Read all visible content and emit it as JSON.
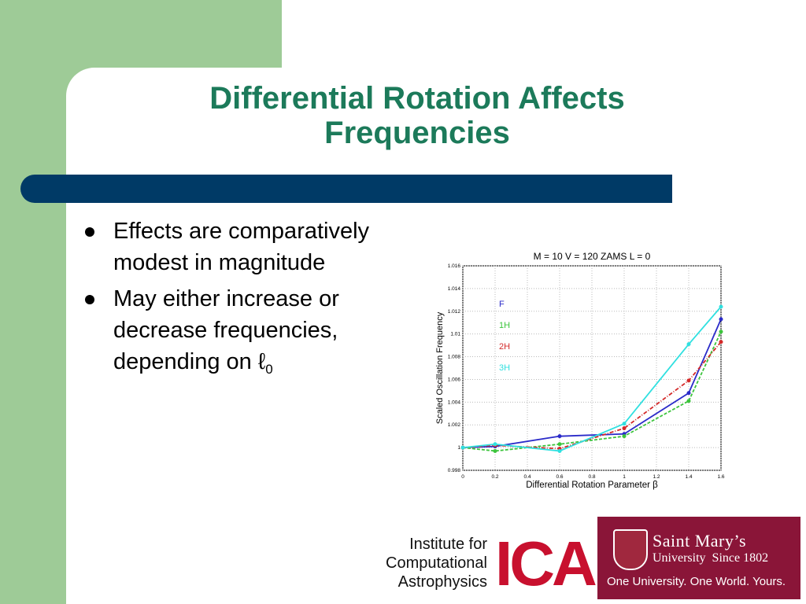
{
  "slide": {
    "title_line1": "Differential Rotation Affects",
    "title_line2": "Frequencies",
    "bullets": [
      {
        "text": "Effects are comparatively modest in magnitude"
      },
      {
        "text_main": "May either increase or decrease frequencies, depending on ℓ",
        "subscript": "0"
      }
    ]
  },
  "logos": {
    "ica": {
      "line1": "Institute for",
      "line2": "Computational",
      "line3": "Astrophysics",
      "mark": "ICA"
    },
    "smu": {
      "name": "Saint Mary’s",
      "sub": "University",
      "since": "Since 1802",
      "tagline": "One University. One World. Yours."
    }
  },
  "colors": {
    "accent_green": "#1c7a5a",
    "bar_blue": "#003a66",
    "side_green": "#9ecb97",
    "smu_maroon": "#8a1538",
    "ica_red": "#c8102e"
  },
  "chart_data": {
    "type": "line",
    "title": "M = 10  V = 120  ZAMS   L = 0",
    "xlabel": "Differential Rotation Parameter β",
    "ylabel": "Scaled Oscillation Frequency",
    "xlim": [
      0,
      1.6
    ],
    "ylim": [
      0.998,
      1.016
    ],
    "xticks": [
      "0",
      "0.2",
      "0.4",
      "0.6",
      "0.8",
      "1",
      "1.2",
      "1.4",
      "1.6"
    ],
    "yticks": [
      "0.998",
      "1",
      "1.002",
      "1.004",
      "1.006",
      "1.008",
      "1.01",
      "1.012",
      "1.014",
      "1.016"
    ],
    "grid": true,
    "legend_position": "upper-left",
    "x": [
      0,
      0.2,
      0.6,
      1.0,
      1.4,
      1.6
    ],
    "series": [
      {
        "name": "F",
        "color": "#2b2bc9",
        "dash": "solid",
        "values": [
          1.0,
          1.0001,
          1.001,
          1.0012,
          1.0048,
          1.0113
        ]
      },
      {
        "name": "1H",
        "color": "#3cc43c",
        "dash": "dashed",
        "values": [
          1.0,
          0.9997,
          1.0003,
          1.001,
          1.0041,
          1.0102
        ]
      },
      {
        "name": "2H",
        "color": "#d42a2a",
        "dash": "dashdot",
        "values": [
          1.0,
          1.0002,
          0.9999,
          1.0017,
          1.0059,
          1.0093
        ]
      },
      {
        "name": "3H",
        "color": "#30e0e0",
        "dash": "solid",
        "values": [
          1.0,
          1.0003,
          0.9997,
          1.0021,
          1.0091,
          1.0124
        ]
      }
    ]
  }
}
